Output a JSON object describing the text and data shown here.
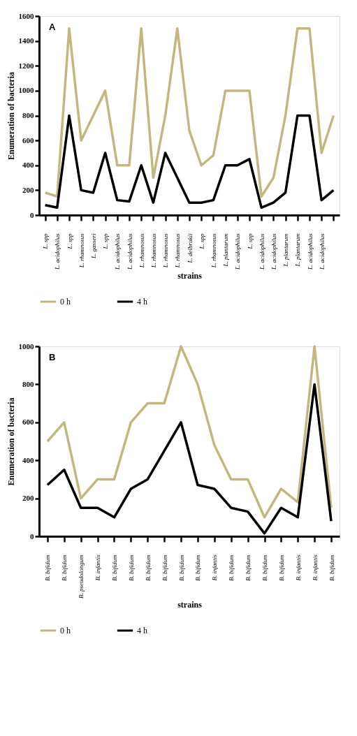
{
  "chart_data": [
    {
      "type": "line",
      "title": "A",
      "xlabel": "strains",
      "ylabel": "Enumeration of bacteria",
      "categories": [
        "L. spp",
        "L. acidophilus",
        "L. spp",
        "L. rhamnosus",
        "L. gasseri",
        "L. spp",
        "L. acidophilus",
        "L. acidophilus",
        "L. rhamnosus",
        "L. rhamnosus",
        "L. rhamnosus",
        "L. rhamnosus",
        "L. delbrukii",
        "L. spp",
        "L. rhamnosus",
        "L. plantarum",
        "L. acidophilus",
        "L. spp",
        "L. acidophilus",
        "L. acidophilus",
        "L. plantarum",
        "L. plantarum",
        "L. acidophilus",
        "L. acidophilus",
        null
      ],
      "series": [
        {
          "name": "0 h",
          "color": "#c2b77e",
          "values": [
            180,
            150,
            1500,
            600,
            800,
            1000,
            400,
            400,
            1500,
            300,
            800,
            1500,
            680,
            400,
            480,
            1000,
            1000,
            1000,
            150,
            300,
            800,
            1500,
            1500,
            500,
            800
          ]
        },
        {
          "name": "4 h",
          "color": "#000000",
          "values": [
            80,
            60,
            800,
            200,
            180,
            500,
            120,
            110,
            400,
            100,
            500,
            300,
            100,
            100,
            120,
            400,
            400,
            450,
            60,
            100,
            180,
            800,
            800,
            120,
            200
          ]
        }
      ],
      "ylim": [
        0,
        1600
      ],
      "yticks": [
        0,
        200,
        400,
        600,
        800,
        1000,
        1200,
        1400,
        1600
      ],
      "grid": false,
      "legend": "bottom",
      "line_style": "solid"
    },
    {
      "type": "line",
      "title": "B",
      "xlabel": "strains",
      "ylabel": "Enumeration of bacteria",
      "categories": [
        "B. bifidum",
        "B. bifidum",
        "B. pseudolongum",
        "B. infantis",
        "B. bifidum",
        "B. bifidum",
        "B. bifidum",
        "B. bifidum",
        "B. bifidum",
        "B. bifidum",
        "B. infantis",
        "B. bifidum",
        "B. bifidum",
        "B. bifidum",
        "B. bifidum",
        "B. infantis",
        "B. infantis",
        "B. bifidum"
      ],
      "series": [
        {
          "name": "0 h",
          "color": "#c2b77e",
          "values": [
            500,
            600,
            200,
            300,
            300,
            600,
            700,
            700,
            1000,
            800,
            480,
            300,
            300,
            100,
            250,
            180,
            1000,
            150
          ]
        },
        {
          "name": "4 h",
          "color": "#000000",
          "values": [
            270,
            350,
            150,
            150,
            100,
            250,
            300,
            450,
            600,
            270,
            250,
            150,
            130,
            15,
            150,
            100,
            800,
            80
          ]
        }
      ],
      "ylim": [
        0,
        1000
      ],
      "yticks": [
        0,
        200,
        400,
        600,
        800,
        1000
      ],
      "grid": false,
      "legend": "bottom",
      "line_style": "solid"
    }
  ]
}
